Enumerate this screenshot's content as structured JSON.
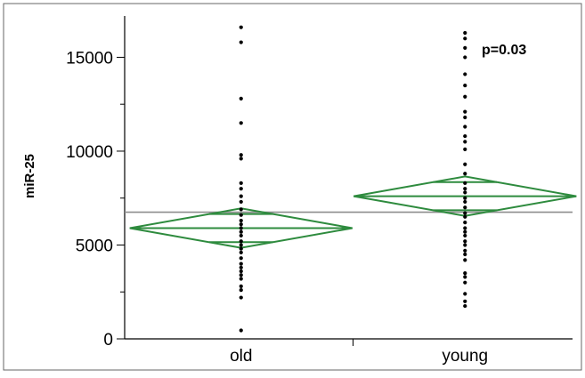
{
  "chart_data": {
    "type": "scatter",
    "title": "",
    "xlabel": "",
    "ylabel": "miR-25",
    "annotation": "p=0.03",
    "categories": [
      "old",
      "young"
    ],
    "ylim": [
      0,
      17200
    ],
    "yticks": [
      0,
      5000,
      10000,
      15000
    ],
    "grid": false,
    "grand_mean": 6750,
    "colors": {
      "points": "#000000",
      "diamond": "#2e8b3e",
      "grand_mean_line": "#8c8c8c",
      "axis": "#000000",
      "frame": "#666666"
    },
    "groups": [
      {
        "name": "old",
        "mean": 5900,
        "ci_upper": 6950,
        "ci_lower": 4850,
        "overlap_upper": 6650,
        "overlap_lower": 5150,
        "values": [
          16600,
          15800,
          12800,
          11500,
          9800,
          9600,
          8300,
          8000,
          7600,
          7300,
          6900,
          6600,
          6300,
          6100,
          5900,
          5700,
          5500,
          5200,
          5000,
          4800,
          4600,
          4300,
          4000,
          3800,
          3600,
          3400,
          3200,
          2800,
          2600,
          2200,
          450
        ]
      },
      {
        "name": "young",
        "mean": 7600,
        "ci_upper": 8650,
        "ci_lower": 6550,
        "overlap_upper": 8350,
        "overlap_lower": 6850,
        "values": [
          16300,
          16000,
          15500,
          15000,
          14100,
          13500,
          12900,
          12100,
          11800,
          11300,
          10800,
          10500,
          10100,
          9300,
          8800,
          8300,
          8000,
          7800,
          7500,
          7300,
          7000,
          6700,
          6500,
          6200,
          5900,
          5700,
          5500,
          5200,
          5000,
          4700,
          4500,
          4200,
          3500,
          3300,
          3000,
          2400,
          2000,
          1750
        ]
      }
    ]
  }
}
